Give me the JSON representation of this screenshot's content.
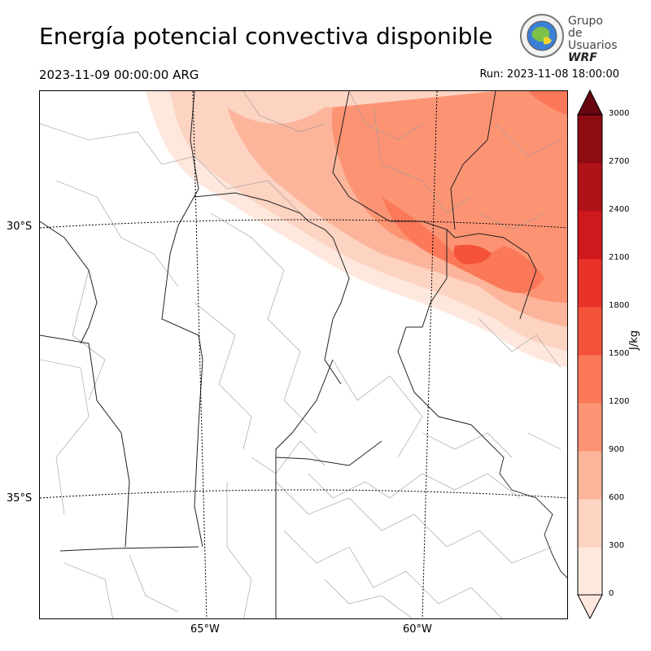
{
  "header": {
    "title": "Energía potencial convectiva disponible",
    "valid_time": "2023-11-09 00:00:00 ARG",
    "run_time": "Run: 2023-11-08 18:00:00"
  },
  "logo": {
    "line1": "Grupo de",
    "line2": "Usuarios",
    "line3": "WRF"
  },
  "map": {
    "lat_labels": [
      "30°S",
      "35°S"
    ],
    "lon_labels": [
      "65°W",
      "60°W"
    ]
  },
  "colorbar": {
    "unit": "J/kg",
    "ticks": [
      "3000",
      "2700",
      "2400",
      "2100",
      "1800",
      "1500",
      "1200",
      "900",
      "600",
      "300",
      "0"
    ],
    "colors": [
      "#fee8dd",
      "#fdd3c2",
      "#fcb59b",
      "#fc9474",
      "#fb7858",
      "#f45339",
      "#e83229",
      "#d0191d",
      "#b01217",
      "#8e0b12",
      "#670611"
    ]
  }
}
